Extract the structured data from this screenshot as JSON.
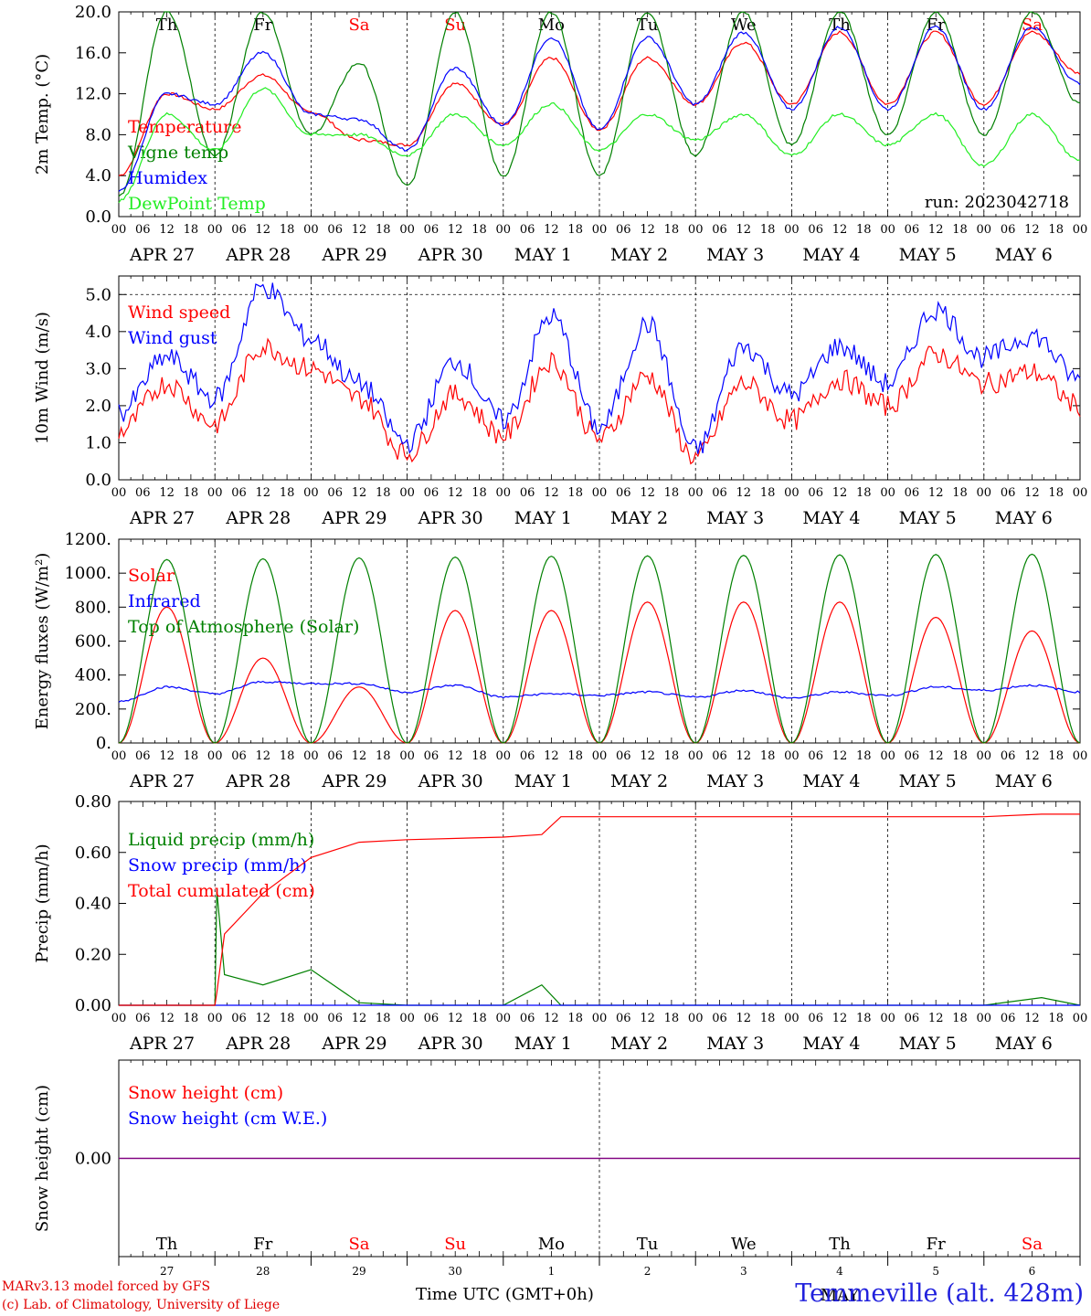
{
  "run_label": "run: 2023042718",
  "xaxis_title": "Time UTC (GMT+0h)",
  "credit_line1": "MARv3.13 model forced by GFS",
  "credit_line2": "(c) Lab. of Climatology, University of Liege",
  "station": "Temmeville (alt. 428m)",
  "month_label": "MAY",
  "day_names": [
    "Th",
    "Fr",
    "Sa",
    "Su",
    "Mo",
    "Tu",
    "We",
    "Th",
    "Fr",
    "Sa"
  ],
  "weekend_flags": [
    false,
    false,
    true,
    true,
    false,
    false,
    false,
    false,
    false,
    true
  ],
  "date_labels": [
    "APR 27",
    "APR 28",
    "APR 29",
    "APR 30",
    "MAY  1",
    "MAY  2",
    "MAY  3",
    "MAY  4",
    "MAY  5",
    "MAY  6"
  ],
  "day_numbers": [
    "27",
    "28",
    "29",
    "30",
    "1",
    "2",
    "3",
    "4",
    "5",
    "6"
  ],
  "hour_ticks": [
    "00",
    "06",
    "12",
    "18"
  ],
  "colors": {
    "red": "#ff0000",
    "green": "#008000",
    "blue": "#0000ff",
    "lightgreen": "#22ee22",
    "purple": "#800080"
  },
  "chart_data": [
    {
      "type": "line",
      "ylabel": "2m Temp. (°C)",
      "ylim": [
        0,
        20
      ],
      "yticks": [
        "0.0",
        "4.0",
        "8.0",
        "12.0",
        "16.0",
        "20.0"
      ],
      "grid": "dotted vertical at 00 UTC each day",
      "legend_position": "top-left inside plot",
      "x_days": [
        0,
        0.5,
        1,
        1.5,
        2,
        2.5,
        3,
        3.5,
        4,
        4.5,
        5,
        5.5,
        6,
        6.5,
        7,
        7.5,
        8,
        8.5,
        9,
        9.5,
        10
      ],
      "series": [
        {
          "name": "Temperature",
          "color": "red",
          "values": [
            4.0,
            12.0,
            10.5,
            13.8,
            10.2,
            7.5,
            7.0,
            13.0,
            9.0,
            15.5,
            8.5,
            15.5,
            11.0,
            17.0,
            11.0,
            18.0,
            11.0,
            18.0,
            11.0,
            18.0,
            14.0
          ]
        },
        {
          "name": "Vigne temp",
          "color": "green",
          "values": [
            2.0,
            20.0,
            6.0,
            20.0,
            8.0,
            15.0,
            3.0,
            20.0,
            4.0,
            20.0,
            4.0,
            20.0,
            6.0,
            20.0,
            7.0,
            20.0,
            8.0,
            20.0,
            8.0,
            20.0,
            11.0
          ]
        },
        {
          "name": "Humidex",
          "color": "blue",
          "values": [
            2.5,
            12.0,
            11.0,
            16.0,
            10.0,
            9.5,
            6.5,
            14.5,
            9.0,
            17.5,
            8.5,
            17.5,
            11.0,
            18.0,
            10.5,
            18.5,
            10.5,
            18.5,
            10.5,
            18.5,
            13.0
          ]
        },
        {
          "name": "DewPoint Temp",
          "color": "lightgreen",
          "values": [
            1.5,
            10.0,
            6.5,
            12.5,
            8.0,
            8.0,
            6.0,
            10.0,
            7.0,
            11.0,
            6.5,
            10.0,
            7.5,
            10.0,
            6.0,
            10.0,
            7.0,
            10.0,
            5.0,
            10.0,
            5.5
          ]
        }
      ]
    },
    {
      "type": "line",
      "ylabel": "10m Wind (m/s)",
      "ylim": [
        0,
        5.5
      ],
      "yticks": [
        "0.0",
        "1.0",
        "2.0",
        "3.0",
        "4.0",
        "5.0"
      ],
      "legend_position": "top-left inside plot",
      "x_days": [
        0,
        0.5,
        1,
        1.5,
        2,
        2.5,
        3,
        3.5,
        4,
        4.5,
        5,
        5.5,
        6,
        6.5,
        7,
        7.5,
        8,
        8.5,
        9,
        9.5,
        10
      ],
      "series": [
        {
          "name": "Wind speed",
          "color": "red",
          "values": [
            1.3,
            2.6,
            1.5,
            3.6,
            3.0,
            2.2,
            0.7,
            2.3,
            1.2,
            3.2,
            1.1,
            2.8,
            0.6,
            2.6,
            1.6,
            2.7,
            2.0,
            3.4,
            2.6,
            2.9,
            2.0
          ]
        },
        {
          "name": "Wind gust",
          "color": "blue",
          "values": [
            1.8,
            3.3,
            2.2,
            5.2,
            3.8,
            2.6,
            1.0,
            3.2,
            1.6,
            4.4,
            1.4,
            4.2,
            0.8,
            3.6,
            2.3,
            3.6,
            2.6,
            4.6,
            3.3,
            3.9,
            2.7
          ]
        }
      ]
    },
    {
      "type": "line",
      "ylabel": "Energy fluxes (W/m²)",
      "ylim": [
        0,
        1200
      ],
      "yticks": [
        "0.",
        "200.",
        "400.",
        "600.",
        "800.",
        "1000.",
        "1200."
      ],
      "legend_position": "top-left inside plot",
      "x_days": [
        0,
        0.5,
        1,
        1.5,
        2,
        2.5,
        3,
        3.5,
        4,
        4.5,
        5,
        5.5,
        6,
        6.5,
        7,
        7.5,
        8,
        8.5,
        9,
        9.5,
        10
      ],
      "series": [
        {
          "name": "Solar",
          "color": "red",
          "values": [
            0,
            800,
            0,
            500,
            0,
            330,
            0,
            780,
            0,
            780,
            0,
            830,
            0,
            830,
            0,
            830,
            0,
            740,
            0,
            660,
            0
          ]
        },
        {
          "name": "Infrared",
          "color": "blue",
          "values": [
            245,
            330,
            290,
            360,
            350,
            350,
            300,
            340,
            270,
            290,
            280,
            300,
            270,
            310,
            265,
            300,
            280,
            330,
            310,
            340,
            300
          ]
        },
        {
          "name": "Top of Atmosphere (Solar)",
          "color": "green",
          "values": [
            0,
            1080,
            0,
            1085,
            0,
            1090,
            0,
            1095,
            0,
            1100,
            0,
            1102,
            0,
            1105,
            0,
            1108,
            0,
            1110,
            0,
            1112,
            0
          ]
        }
      ]
    },
    {
      "type": "line",
      "ylabel": "Precip (mm/h)",
      "ylim": [
        0,
        0.8
      ],
      "yticks": [
        "0.00",
        "0.20",
        "0.40",
        "0.60",
        "0.80"
      ],
      "legend_position": "left inside plot",
      "x_days": [
        0,
        1,
        1.02,
        1.1,
        1.5,
        2,
        2.5,
        3,
        4,
        4.4,
        4.6,
        5,
        6,
        7,
        8,
        9,
        9.6,
        10
      ],
      "series": [
        {
          "name": "Liquid precip (mm/h)",
          "color": "green",
          "values": [
            0,
            0,
            0.45,
            0.12,
            0.08,
            0.14,
            0.01,
            0,
            0,
            0.08,
            0,
            0,
            0,
            0,
            0,
            0,
            0.03,
            0
          ]
        },
        {
          "name": "Snow precip (mm/h)",
          "color": "blue",
          "values": [
            0,
            0,
            0,
            0,
            0,
            0,
            0,
            0,
            0,
            0,
            0,
            0,
            0,
            0,
            0,
            0,
            0,
            0
          ]
        },
        {
          "name": "Total cumulated (cm)",
          "color": "red",
          "values": [
            0,
            0,
            0.05,
            0.28,
            0.44,
            0.58,
            0.64,
            0.65,
            0.66,
            0.67,
            0.74,
            0.74,
            0.74,
            0.74,
            0.74,
            0.74,
            0.75,
            0.75
          ]
        }
      ]
    },
    {
      "type": "line",
      "ylabel": "Snow height (cm)",
      "ylim": [
        -1,
        1
      ],
      "yticks": [
        "0.00"
      ],
      "legend_position": "top-left inside plot",
      "x_days": [
        0,
        10
      ],
      "series": [
        {
          "name": "Snow height (cm)",
          "color": "red",
          "values": [
            0,
            0
          ]
        },
        {
          "name": "Snow height (cm W.E.)",
          "color": "blue",
          "values": [
            0,
            0
          ]
        }
      ]
    }
  ]
}
